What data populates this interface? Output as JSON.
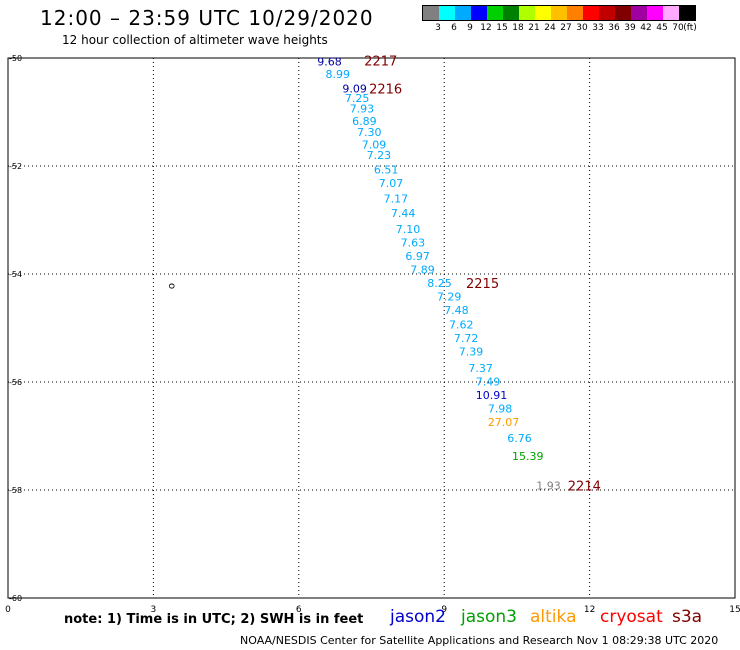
{
  "header": {
    "title": "12:00 – 23:59 UTC 10/29/2020",
    "subtitle": "12 hour collection of altimeter wave heights"
  },
  "legend": {
    "colors": [
      "#808080",
      "#00ffff",
      "#00aaff",
      "#0000ff",
      "#00d000",
      "#008000",
      "#b0ff00",
      "#ffff00",
      "#ffc000",
      "#ff8000",
      "#ff0000",
      "#c00000",
      "#800000",
      "#a000a0",
      "#ff00ff",
      "#ffaaff",
      "#000000"
    ],
    "labels": [
      "3",
      "6",
      "9",
      "12",
      "15",
      "18",
      "21",
      "24",
      "27",
      "30",
      "33",
      "36",
      "39",
      "42",
      "45",
      "70",
      "(ft)"
    ]
  },
  "map": {
    "x_ticks": [
      "0",
      "3",
      "6",
      "9",
      "12",
      "15"
    ],
    "y_ticks": [
      "-50",
      "-52",
      "-54",
      "-56",
      "-58",
      "-60"
    ],
    "island_label": "o"
  },
  "chart_data": {
    "type": "scatter",
    "xlim": [
      0,
      15
    ],
    "ylim": [
      -60,
      -50
    ],
    "x_ticks": [
      0,
      3,
      6,
      9,
      12,
      15
    ],
    "y_ticks": [
      -50,
      -52,
      -54,
      -56,
      -58,
      -60
    ],
    "grid": true,
    "observations": [
      {
        "x": 6.38,
        "y": -50.05,
        "label": "9.68",
        "color": "#0000a0"
      },
      {
        "x": 6.55,
        "y": -50.28,
        "label": "8.99",
        "color": "#00aaff"
      },
      {
        "x": 6.9,
        "y": -50.55,
        "label": "9.09",
        "color": "#0000a0"
      },
      {
        "x": 6.95,
        "y": -50.72,
        "label": "7.25",
        "color": "#00aaff"
      },
      {
        "x": 7.05,
        "y": -50.92,
        "label": "7.93",
        "color": "#00aaff"
      },
      {
        "x": 7.1,
        "y": -51.15,
        "label": "6.89",
        "color": "#00aaff"
      },
      {
        "x": 7.2,
        "y": -51.35,
        "label": "7.30",
        "color": "#00aaff"
      },
      {
        "x": 7.3,
        "y": -51.58,
        "label": "7.09",
        "color": "#00aaff"
      },
      {
        "x": 7.4,
        "y": -51.78,
        "label": "7.23",
        "color": "#00aaff"
      },
      {
        "x": 7.55,
        "y": -52.05,
        "label": "6.51",
        "color": "#00aaff"
      },
      {
        "x": 7.65,
        "y": -52.3,
        "label": "7.07",
        "color": "#00aaff"
      },
      {
        "x": 7.75,
        "y": -52.58,
        "label": "7.17",
        "color": "#00aaff"
      },
      {
        "x": 7.9,
        "y": -52.85,
        "label": "7.44",
        "color": "#00aaff"
      },
      {
        "x": 8.0,
        "y": -53.15,
        "label": "7.10",
        "color": "#00aaff"
      },
      {
        "x": 8.1,
        "y": -53.4,
        "label": "7.63",
        "color": "#00aaff"
      },
      {
        "x": 8.2,
        "y": -53.65,
        "label": "6.97",
        "color": "#00aaff"
      },
      {
        "x": 8.3,
        "y": -53.9,
        "label": "7.89",
        "color": "#00aaff"
      },
      {
        "x": 8.65,
        "y": -54.15,
        "label": "8.25",
        "color": "#00aaff"
      },
      {
        "x": 8.85,
        "y": -54.4,
        "label": "7.29",
        "color": "#00aaff"
      },
      {
        "x": 9.0,
        "y": -54.65,
        "label": "7.48",
        "color": "#00aaff"
      },
      {
        "x": 9.1,
        "y": -54.92,
        "label": "7.62",
        "color": "#00aaff"
      },
      {
        "x": 9.2,
        "y": -55.17,
        "label": "7.72",
        "color": "#00aaff"
      },
      {
        "x": 9.3,
        "y": -55.42,
        "label": "7.39",
        "color": "#00aaff"
      },
      {
        "x": 9.5,
        "y": -55.72,
        "label": "7.37",
        "color": "#00aaff"
      },
      {
        "x": 9.65,
        "y": -55.97,
        "label": "7.49",
        "color": "#00aaff"
      },
      {
        "x": 9.65,
        "y": -56.22,
        "label": "10.91",
        "color": "#0000cc"
      },
      {
        "x": 9.9,
        "y": -56.47,
        "label": "7.98",
        "color": "#00aaff"
      },
      {
        "x": 9.9,
        "y": -56.72,
        "label": "27.07",
        "color": "#ff9900"
      },
      {
        "x": 10.3,
        "y": -57.02,
        "label": "6.76",
        "color": "#00aaff"
      },
      {
        "x": 10.4,
        "y": -57.35,
        "label": "15.39",
        "color": "#00a000"
      },
      {
        "x": 10.9,
        "y": -57.9,
        "label": "1.93",
        "color": "#808080"
      }
    ],
    "track_times": [
      {
        "x": 7.35,
        "y": -50.03,
        "label": "2217"
      },
      {
        "x": 7.45,
        "y": -50.55,
        "label": "2216"
      },
      {
        "x": 9.45,
        "y": -54.15,
        "label": "2215"
      },
      {
        "x": 11.55,
        "y": -57.9,
        "label": "2214"
      }
    ]
  },
  "note": "note:  1) Time is in UTC;  2) SWH is in feet",
  "satellites": [
    {
      "name": "jason2",
      "color": "#0000cc"
    },
    {
      "name": "jason3",
      "color": "#00a000"
    },
    {
      "name": "altika",
      "color": "#ff9900"
    },
    {
      "name": "cryosat",
      "color": "#ff0000"
    },
    {
      "name": "s3a",
      "color": "#800000"
    }
  ],
  "footer": "NOAA/NESDIS Center for Satellite Applications and Research    Nov  1 08:29:38 UTC 2020"
}
